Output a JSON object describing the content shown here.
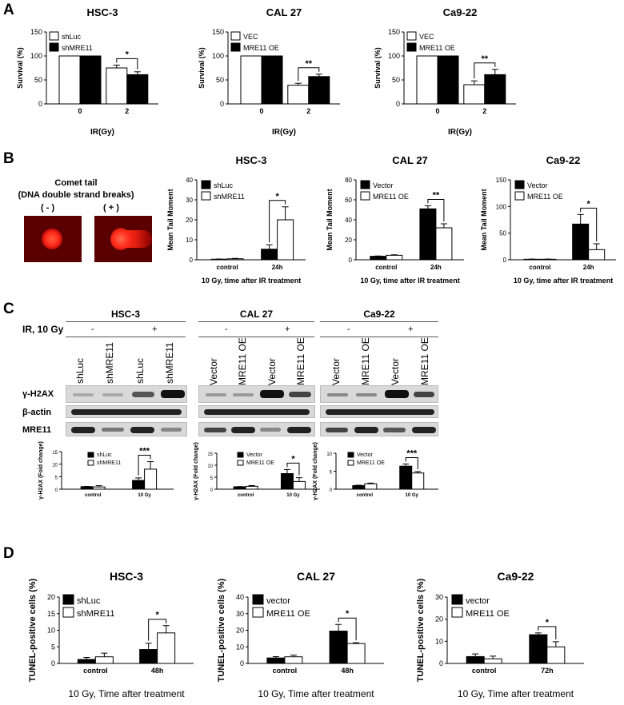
{
  "panels": {
    "a": "A",
    "b": "B",
    "c": "C",
    "d": "D"
  },
  "comet": {
    "title_1": "Comet tail",
    "title_2": "(DNA double strand breaks)",
    "neg": "( - )",
    "pos": "( + )"
  },
  "blot": {
    "ir_label": "IR, 10 Gy",
    "minus": "-",
    "plus": "+",
    "rows": [
      "γ-H2AX",
      "β-actin",
      "MRE11"
    ],
    "groups": [
      {
        "title": "HSC-3",
        "lanes": [
          "shLuc",
          "shMRE11",
          "shLuc",
          "shMRE11"
        ]
      },
      {
        "title": "CAL 27",
        "lanes": [
          "Vector",
          "MRE11 OE",
          "Vector",
          "MRE11 OE"
        ]
      },
      {
        "title": "Ca9-22",
        "lanes": [
          "Vector",
          "MRE11 OE",
          "Vector",
          "MRE11 OE"
        ]
      }
    ]
  },
  "colors": {
    "ctrl": "#ffffff",
    "treat": "#000000",
    "comet_glow": "#ff3030"
  },
  "chart_data": [
    {
      "id": "a1",
      "type": "bar",
      "title": "HSC-3",
      "ylabel": "Survival (%)",
      "xlabel": "IR(Gy)",
      "categories": [
        "0",
        "2"
      ],
      "ylim": [
        0,
        150
      ],
      "yticks": [
        0,
        50,
        100,
        150
      ],
      "legend_placement": "top-left",
      "series": [
        {
          "name": "shLuc",
          "fill": "white",
          "values": [
            100,
            75
          ],
          "errors": [
            0,
            6
          ]
        },
        {
          "name": "shMRE11",
          "fill": "black",
          "values": [
            100,
            61
          ],
          "errors": [
            0,
            6
          ]
        }
      ],
      "annotations": [
        {
          "text": "*",
          "category": 1
        }
      ]
    },
    {
      "id": "a2",
      "type": "bar",
      "title": "CAL 27",
      "ylabel": "Survival (%)",
      "xlabel": "IR(Gy)",
      "categories": [
        "0",
        "2"
      ],
      "ylim": [
        0,
        150
      ],
      "yticks": [
        0,
        50,
        100,
        150
      ],
      "legend_placement": "top-left",
      "series": [
        {
          "name": "VEC",
          "fill": "white",
          "values": [
            100,
            39
          ],
          "errors": [
            0,
            4
          ]
        },
        {
          "name": "MRE11 OE",
          "fill": "black",
          "values": [
            100,
            57
          ],
          "errors": [
            0,
            5
          ]
        }
      ],
      "annotations": [
        {
          "text": "**",
          "category": 1
        }
      ]
    },
    {
      "id": "a3",
      "type": "bar",
      "title": "Ca9-22",
      "ylabel": "Survival (%)",
      "xlabel": "IR(Gy)",
      "categories": [
        "0",
        "2"
      ],
      "ylim": [
        0,
        150
      ],
      "yticks": [
        0,
        50,
        100,
        150
      ],
      "legend_placement": "top-left",
      "series": [
        {
          "name": "VEC",
          "fill": "white",
          "values": [
            100,
            40
          ],
          "errors": [
            0,
            8
          ]
        },
        {
          "name": "MRE11 OE",
          "fill": "black",
          "values": [
            100,
            61
          ],
          "errors": [
            0,
            11
          ]
        }
      ],
      "annotations": [
        {
          "text": "**",
          "category": 1
        }
      ]
    },
    {
      "id": "b1",
      "type": "bar",
      "title": "HSC-3",
      "ylabel": "Mean Tail Moment",
      "xlabel": "10 Gy, time after IR treatment",
      "categories": [
        "control",
        "24h"
      ],
      "ylim": [
        0,
        40
      ],
      "yticks": [
        0,
        10,
        20,
        30,
        40
      ],
      "legend_placement": "top-left",
      "series": [
        {
          "name": "shLuc",
          "fill": "black",
          "values": [
            0.3,
            5.3
          ],
          "errors": [
            0.1,
            2.2
          ]
        },
        {
          "name": "shMRE11",
          "fill": "white",
          "values": [
            0.5,
            20
          ],
          "errors": [
            0.2,
            6.5
          ]
        }
      ],
      "annotations": [
        {
          "text": "*",
          "category": 1
        }
      ]
    },
    {
      "id": "b2",
      "type": "bar",
      "title": "CAL 27",
      "ylabel": "Mean Tail Moment",
      "xlabel": "10 Gy, time after IR treatment",
      "categories": [
        "control",
        "24h"
      ],
      "ylim": [
        0,
        80
      ],
      "yticks": [
        0,
        20,
        40,
        60,
        80
      ],
      "legend_placement": "top-left",
      "series": [
        {
          "name": "Vector",
          "fill": "black",
          "values": [
            3.5,
            51
          ],
          "errors": [
            0.3,
            3
          ]
        },
        {
          "name": "MRE11 OE",
          "fill": "white",
          "values": [
            4.5,
            32
          ],
          "errors": [
            0.5,
            4
          ]
        }
      ],
      "annotations": [
        {
          "text": "**",
          "category": 1
        }
      ]
    },
    {
      "id": "b3",
      "type": "bar",
      "title": "Ca9-22",
      "ylabel": "Mean Tail Moment",
      "xlabel": "10 Gy, time after IR treatment",
      "categories": [
        "control",
        "24h"
      ],
      "ylim": [
        0,
        150
      ],
      "yticks": [
        0,
        50,
        100,
        150
      ],
      "legend_placement": "top-left",
      "series": [
        {
          "name": "Vector",
          "fill": "black",
          "values": [
            1,
            67
          ],
          "errors": [
            0.3,
            18
          ]
        },
        {
          "name": "MRE11 OE",
          "fill": "white",
          "values": [
            1,
            19
          ],
          "errors": [
            0.3,
            11
          ]
        }
      ],
      "annotations": [
        {
          "text": "*",
          "category": 1
        }
      ]
    },
    {
      "id": "c1",
      "type": "bar",
      "title": "",
      "ylabel": "γ-H2AX (Fold change)",
      "xlabel": "",
      "categories": [
        "control",
        "10 Gy"
      ],
      "ylim": [
        0,
        15
      ],
      "yticks": [
        0,
        5,
        10,
        15
      ],
      "legend_placement": "top-left",
      "series": [
        {
          "name": "shLuc",
          "fill": "black",
          "values": [
            1,
            3.5
          ],
          "errors": [
            0.1,
            1
          ]
        },
        {
          "name": "shMRE11",
          "fill": "white",
          "values": [
            0.9,
            8
          ],
          "errors": [
            0.5,
            3
          ]
        }
      ],
      "annotations": [
        {
          "text": "***",
          "category": 1
        }
      ]
    },
    {
      "id": "c2",
      "type": "bar",
      "title": "",
      "ylabel": "γ-H2AX (Fold change)",
      "xlabel": "",
      "categories": [
        "control",
        "10 Gy"
      ],
      "ylim": [
        0,
        15
      ],
      "yticks": [
        0,
        5,
        10,
        15
      ],
      "legend_placement": "top-left",
      "series": [
        {
          "name": "Vector",
          "fill": "black",
          "values": [
            1,
            6.5
          ],
          "errors": [
            0.1,
            1.7
          ]
        },
        {
          "name": "MRE11 OE",
          "fill": "white",
          "values": [
            1.2,
            3.2
          ],
          "errors": [
            0.3,
            1.6
          ]
        }
      ],
      "annotations": [
        {
          "text": "*",
          "category": 1
        }
      ]
    },
    {
      "id": "c3",
      "type": "bar",
      "title": "",
      "ylabel": "γ-H2AX (Fold change)",
      "xlabel": "",
      "categories": [
        "control",
        "10 Gy"
      ],
      "ylim": [
        0,
        10
      ],
      "yticks": [
        0,
        5,
        10
      ],
      "legend_placement": "top-left",
      "series": [
        {
          "name": "Vector",
          "fill": "black",
          "values": [
            1,
            6.4
          ],
          "errors": [
            0.1,
            0.6
          ]
        },
        {
          "name": "MRE11 OE",
          "fill": "white",
          "values": [
            1.5,
            4.5
          ],
          "errors": [
            0.2,
            0.4
          ]
        }
      ],
      "annotations": [
        {
          "text": "***",
          "category": 1
        }
      ]
    },
    {
      "id": "d1",
      "type": "bar",
      "title": "HSC-3",
      "ylabel": "TUNEL-positive cells (%)",
      "xlabel": "10 Gy, Time after treatment",
      "categories": [
        "control",
        "48h"
      ],
      "ylim": [
        0,
        20
      ],
      "yticks": [
        0,
        5,
        10,
        15,
        20
      ],
      "legend_placement": "top-left",
      "series": [
        {
          "name": "shLuc",
          "fill": "black",
          "values": [
            1.2,
            4.2
          ],
          "errors": [
            0.6,
            1.9
          ]
        },
        {
          "name": "shMRE11",
          "fill": "white",
          "values": [
            2,
            9.2
          ],
          "errors": [
            1.1,
            2.2
          ]
        }
      ],
      "annotations": [
        {
          "text": "*",
          "category": 1
        }
      ]
    },
    {
      "id": "d2",
      "type": "bar",
      "title": "CAL 27",
      "ylabel": "TUNEL-positive cells (%)",
      "xlabel": "10 Gy, Time after treatment",
      "categories": [
        "control",
        "48h"
      ],
      "ylim": [
        0,
        40
      ],
      "yticks": [
        0,
        10,
        20,
        30,
        40
      ],
      "legend_placement": "top-left",
      "series": [
        {
          "name": "vector",
          "fill": "black",
          "values": [
            3.3,
            19.5
          ],
          "errors": [
            0.8,
            4
          ]
        },
        {
          "name": "MRE11 OE",
          "fill": "white",
          "values": [
            4,
            12
          ],
          "errors": [
            1,
            0.5
          ]
        }
      ],
      "annotations": [
        {
          "text": "*",
          "category": 1
        }
      ]
    },
    {
      "id": "d3",
      "type": "bar",
      "title": "Ca9-22",
      "ylabel": "TUNEL-positive cells (%)",
      "xlabel": "10 Gy, Time after treatment",
      "categories": [
        "control",
        "72h"
      ],
      "ylim": [
        0,
        30
      ],
      "yticks": [
        0,
        10,
        20,
        30
      ],
      "legend_placement": "top-left",
      "series": [
        {
          "name": "vector",
          "fill": "black",
          "values": [
            3.1,
            13
          ],
          "errors": [
            1.2,
            0.8
          ]
        },
        {
          "name": "MRE11 OE",
          "fill": "white",
          "values": [
            2.1,
            7.5
          ],
          "errors": [
            1.2,
            2.3
          ]
        }
      ],
      "annotations": [
        {
          "text": "*",
          "category": 1
        }
      ]
    }
  ]
}
